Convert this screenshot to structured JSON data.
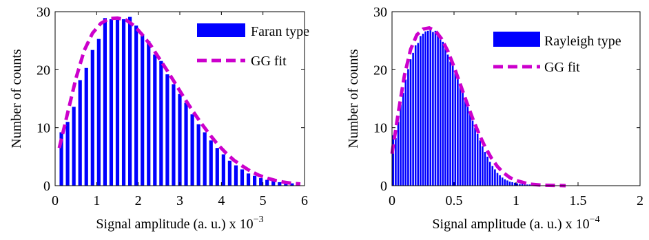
{
  "chart_data": [
    {
      "type": "bar",
      "xlabel": "Signal amplitude (a. u.) x 10",
      "xlabel_exponent": "−3",
      "ylabel": "Number of counts",
      "xlim": [
        0,
        6
      ],
      "ylim": [
        0,
        30
      ],
      "xticks": [
        "0",
        "1",
        "2",
        "3",
        "4",
        "5",
        "6"
      ],
      "yticks": [
        "0",
        "10",
        "20",
        "30"
      ],
      "grid": false,
      "legend_position": "top-right",
      "bar_color": "#0000ff",
      "fit_color": "#cc00cc",
      "legend": {
        "bars": "Faran type",
        "fit": "GG fit"
      },
      "bars": {
        "x": [
          0.15,
          0.3,
          0.45,
          0.6,
          0.75,
          0.9,
          1.05,
          1.2,
          1.35,
          1.5,
          1.65,
          1.8,
          1.95,
          2.1,
          2.25,
          2.4,
          2.55,
          2.7,
          2.85,
          3.0,
          3.15,
          3.3,
          3.45,
          3.6,
          3.75,
          3.9,
          4.05,
          4.2,
          4.35,
          4.5,
          4.65,
          4.8,
          4.95,
          5.1,
          5.25,
          5.4,
          5.55,
          5.7,
          5.85
        ],
        "values": [
          9.2,
          11.0,
          13.6,
          18.2,
          20.3,
          23.4,
          25.3,
          28.9,
          28.7,
          28.6,
          28.7,
          29.1,
          27.6,
          26.1,
          24.9,
          22.6,
          21.5,
          19.2,
          17.5,
          15.8,
          14.3,
          12.3,
          10.6,
          9.2,
          7.8,
          6.5,
          5.4,
          4.3,
          3.5,
          2.8,
          2.1,
          1.7,
          1.3,
          1.0,
          0.8,
          0.6,
          0.5,
          0.4,
          0.3
        ]
      },
      "fit": {
        "x": [
          0.1,
          0.3,
          0.5,
          0.7,
          0.9,
          1.1,
          1.3,
          1.5,
          1.7,
          1.9,
          2.1,
          2.3,
          2.5,
          2.7,
          2.9,
          3.1,
          3.3,
          3.5,
          3.7,
          3.9,
          4.1,
          4.3,
          4.5,
          4.7,
          4.9,
          5.1,
          5.3,
          5.5,
          5.7,
          5.9
        ],
        "values": [
          6.5,
          12.5,
          18.5,
          23.3,
          26.3,
          28.0,
          28.8,
          28.9,
          28.6,
          27.6,
          26.0,
          24.2,
          22.0,
          19.8,
          17.5,
          15.2,
          13.0,
          10.9,
          9.0,
          7.2,
          5.7,
          4.4,
          3.4,
          2.5,
          1.8,
          1.3,
          0.9,
          0.6,
          0.4,
          0.3
        ]
      }
    },
    {
      "type": "bar",
      "xlabel": "Signal amplitude (a. u.) x 10",
      "xlabel_exponent": "−4",
      "ylabel": "Number of counts",
      "xlim": [
        0,
        2
      ],
      "ylim": [
        0,
        30
      ],
      "xticks": [
        "0",
        "0.5",
        "1",
        "1.5",
        "2"
      ],
      "yticks": [
        "0",
        "10",
        "20",
        "30"
      ],
      "grid": false,
      "legend_position": "top-right",
      "bar_color": "#0000ff",
      "fit_color": "#cc00cc",
      "legend": {
        "bars": "Rayleigh type",
        "fit": "GG fit"
      },
      "bars": {
        "x": [
          0.01,
          0.03,
          0.05,
          0.07,
          0.09,
          0.11,
          0.13,
          0.15,
          0.17,
          0.19,
          0.21,
          0.23,
          0.25,
          0.27,
          0.29,
          0.31,
          0.33,
          0.35,
          0.37,
          0.39,
          0.41,
          0.43,
          0.45,
          0.47,
          0.49,
          0.51,
          0.53,
          0.55,
          0.57,
          0.59,
          0.61,
          0.63,
          0.65,
          0.67,
          0.69,
          0.71,
          0.73,
          0.75,
          0.77,
          0.79,
          0.81,
          0.83,
          0.85,
          0.87,
          0.89,
          0.91,
          0.93,
          0.95,
          0.97,
          0.99,
          1.01,
          1.03,
          1.05,
          1.07,
          1.09,
          1.11
        ],
        "values": [
          8.7,
          8.2,
          11.0,
          14.0,
          16.0,
          18.3,
          20.1,
          21.8,
          22.9,
          24.2,
          24.6,
          25.8,
          26.2,
          26.6,
          26.7,
          27.0,
          26.5,
          26.7,
          26.3,
          25.6,
          24.8,
          23.7,
          22.6,
          21.4,
          20.7,
          19.4,
          18.5,
          17.6,
          16.2,
          14.9,
          13.6,
          12.4,
          11.2,
          10.0,
          8.9,
          7.8,
          6.8,
          5.8,
          5.0,
          4.1,
          3.4,
          2.8,
          2.2,
          1.8,
          1.4,
          1.1,
          0.9,
          0.7,
          0.6,
          0.5,
          0.4,
          0.3,
          0.3,
          0.2,
          0.2,
          0.2
        ]
      },
      "fit": {
        "x": [
          0.0,
          0.05,
          0.1,
          0.15,
          0.2,
          0.25,
          0.3,
          0.35,
          0.4,
          0.45,
          0.5,
          0.55,
          0.6,
          0.65,
          0.7,
          0.75,
          0.8,
          0.85,
          0.9,
          0.95,
          1.0,
          1.1,
          1.2,
          1.3,
          1.4
        ],
        "values": [
          5.5,
          12.5,
          19.0,
          23.5,
          26.0,
          27.0,
          27.2,
          26.7,
          25.3,
          23.2,
          20.5,
          17.5,
          14.5,
          11.6,
          9.0,
          6.7,
          4.8,
          3.3,
          2.2,
          1.4,
          0.9,
          0.3,
          0.1,
          0.05,
          0.0
        ]
      }
    }
  ]
}
